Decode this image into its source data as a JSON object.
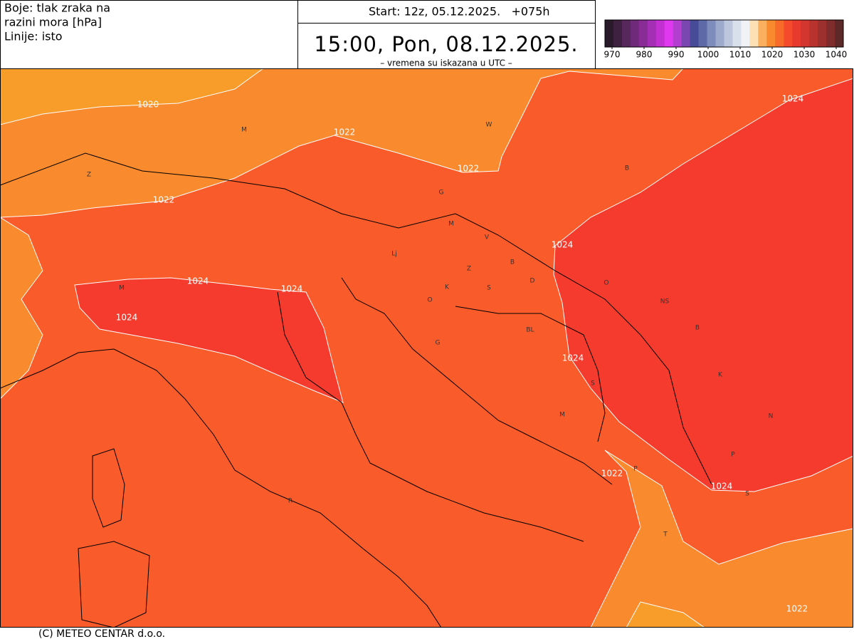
{
  "header": {
    "left_lines": [
      "Boje: tlak zraka na",
      "razini mora [hPa]",
      "Linije: isto"
    ],
    "start": "Start: 12z, 05.12.2025.   +075h",
    "valid_time": "15:00, Pon, 08.12.2025.",
    "note": "– vremena su iskazana u UTC –"
  },
  "colorbar": {
    "ticks": [
      970,
      980,
      990,
      1000,
      1010,
      1020,
      1030,
      1040
    ],
    "colors": [
      "#2a1a2a",
      "#3e2040",
      "#57285c",
      "#702a7a",
      "#8a2c96",
      "#a42eb4",
      "#c230d2",
      "#e038ee",
      "#b43ed0",
      "#7a46b0",
      "#484c98",
      "#5e6aa8",
      "#7e8cbc",
      "#9eaacc",
      "#bcc6dc",
      "#d8e0ec",
      "#f0f2f6",
      "#fde0b4",
      "#fbb060",
      "#f98a2e",
      "#f76a2a",
      "#f54a2c",
      "#e83a2e",
      "#d2362e",
      "#b8322e",
      "#9c302e",
      "#7e2c2c",
      "#5e2828"
    ]
  },
  "map": {
    "isobar_labels": [
      1020,
      1022,
      1022,
      1022,
      1024,
      1024,
      1024,
      1024,
      1024,
      1024,
      1022,
      1024,
      1022
    ],
    "places": [
      "M",
      "W",
      "Z",
      "B",
      "G",
      "M",
      "V",
      "Lj",
      "Z",
      "B",
      "D",
      "O",
      "K",
      "S",
      "O",
      "NS",
      "BL",
      "B",
      "G",
      "K",
      "S",
      "N",
      "M",
      "P",
      "P",
      "S",
      "R",
      "T",
      "M"
    ]
  },
  "footer": "(C) METEO CENTAR d.o.o."
}
